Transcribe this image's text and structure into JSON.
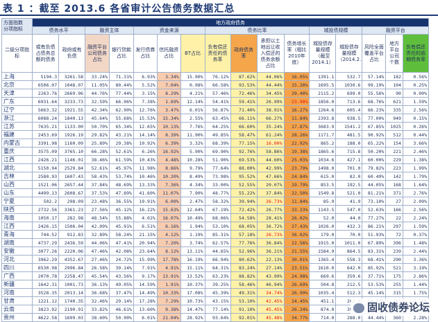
{
  "title": "表 1 ：截至 2013.6 各省审计公告债务数据汇总",
  "header": {
    "corner_top": "方面指数\n分项指标",
    "corner_bottom": "二级分项指标",
    "group_main": "地方政府债务",
    "groups": [
      "债务水平",
      "融资主体",
      "资金来源",
      "债务比率",
      "城投债规模",
      "融资平台"
    ],
    "columns": [
      "或有负债占债务总额的债务",
      "政府或有负债",
      "融资平台公司债务占比",
      "银行贷款占比",
      "发行债券占比",
      "信托融资占比",
      "BT占比",
      "负有偿还责任的债务率",
      "政府债务率",
      "承担以土地出让收入偿还的债务余额占比",
      "债务增长率（相比2010年底）",
      "城投债存量规模（截至2014.1）",
      "城投债存量规模（2014.2.1）",
      "风险全面覆盖平台占比",
      "地方平台公司个数",
      "负有偿还责任的逾期债务率"
    ]
  },
  "rows": [
    {
      "prov": "上海",
      "v": [
        "5194.3",
        "3261.58",
        "33.24%",
        "71.31%",
        "6.93%",
        "3.34%",
        "15.90%",
        "76.12%",
        "87.62%",
        "44.06%",
        "16.05%",
        "1391.1",
        "532.7",
        "57.14%",
        "182",
        "0.56%"
      ]
    },
    {
      "prov": "北京",
      "v": [
        "6506.07",
        "1048.07",
        "11.05%",
        "80.44%",
        "5.52%",
        "7.04%",
        "0.98%",
        "66.58%",
        "93.53%",
        "44.44%",
        "15.20%",
        "1695.5",
        "1030.6",
        "99.19%",
        "104",
        "0.25%"
      ]
    },
    {
      "prov": "天津",
      "v": [
        "2263.76",
        "2669.96",
        "44.76%",
        "77.44%",
        "3.15%",
        "8.29%",
        "4.21%",
        "57.46%",
        "72.46%",
        "34.45%",
        "29.40%",
        "2115.2",
        "699.0",
        "55.56%",
        "90",
        "0.00%"
      ]
    },
    {
      "prov": "广东",
      "v": [
        "6931.64",
        "3233.73",
        "32.59%",
        "66.96%",
        "7.38%",
        "1.69%",
        "12.14%",
        "54.41%",
        "59.41%",
        "26.99%",
        "23.98%",
        "1856.0",
        "713.6",
        "68.76%",
        "621",
        "1.59%"
      ]
    },
    {
      "prov": "辽宁",
      "v": [
        "5663.32",
        "1921.55",
        "42.34%",
        "62.90%",
        "12.76%",
        "3.47%",
        "6.01%",
        "56.87%",
        "71.40%",
        "38.91%",
        "16.27%",
        "1264.6",
        "605.4",
        "66.23%",
        "335",
        "2.56%"
      ]
    },
    {
      "prov": "浙江",
      "v": [
        "6088.24",
        "1840.13",
        "45.64%",
        "55.68%",
        "15.53%",
        "15.34%",
        "2.55%",
        "63.45%",
        "66.11%",
        "66.27%",
        "11.84%",
        "2393.8",
        "938.5",
        "77.00%",
        "949",
        "0.15%"
      ]
    },
    {
      "prov": "江苏",
      "v": [
        "7635.21",
        "1133.00",
        "50.70%",
        "65.34%",
        "12.65%",
        "10.13%",
        "7.76%",
        "64.25%",
        "66.60%",
        "35.24%",
        "17.87%",
        "3683.9",
        "1541.2",
        "67.85%",
        "1025",
        "0.26%"
      ]
    },
    {
      "prov": "福建",
      "v": [
        "2453.69",
        "1926.19",
        "29.82%",
        "43.21%",
        "14.14%",
        "8.39%",
        "11.90%",
        "49.85%",
        "58.47%",
        "61.24%",
        "28.26%",
        "1171.7",
        "481.5",
        "90.92%",
        "512",
        "0.44%"
      ]
    },
    {
      "prov": "内蒙古",
      "v": [
        "3391.98",
        "1160.09",
        "25.89%",
        "29.38%",
        "10.92%",
        "6.39%",
        "3.32%",
        "68.39%",
        "77.15%",
        "16.00%",
        "22.92%",
        "865.2",
        "188.0",
        "65.22%",
        "154",
        "3.66%"
      ]
    },
    {
      "prov": "重庆",
      "v": [
        "3575.09",
        "3765.10",
        "66.28%",
        "52.61%",
        "6.26%",
        "16.92%",
        "5.90%",
        "69.90%",
        "92.76%",
        "58.86%",
        "19.38%",
        "1865.6",
        "715.8",
        "50.20%",
        "221",
        "2.46%"
      ]
    },
    {
      "prov": "江西",
      "v": [
        "2426.21",
        "1146.01",
        "38.46%",
        "61.59%",
        "10.43%",
        "4.48%",
        "10.28%",
        "51.90%",
        "69.53%",
        "44.60%",
        "25.03%",
        "1034.6",
        "427.1",
        "60.00%",
        "229",
        "1.38%"
      ]
    },
    {
      "prov": "湖北",
      "v": [
        "5150.94",
        "2529.84",
        "52.61%",
        "45.97%",
        "11.98%",
        "8.66%",
        "9.79%",
        "77.64%",
        "88.00%",
        "42.99%",
        "23.79%",
        "1498.0",
        "701.0",
        "79.82%",
        "223",
        "1.99%"
      ]
    },
    {
      "prov": "吉林",
      "v": [
        "2580.93",
        "1607.43",
        "58.43%",
        "53.74%",
        "10.46%",
        "10.20%",
        "8.49%",
        "73.98%",
        "95.52%",
        "47.66%",
        "24.84%",
        "615.0",
        "82.0",
        "60.49%",
        "142",
        "1.79%"
      ]
    },
    {
      "prov": "山西",
      "v": [
        "1521.06",
        "2657.44",
        "37.84%",
        "48.69%",
        "13.33%",
        "7.36%",
        "4.34%",
        "33.00%",
        "52.55%",
        "20.07%",
        "19.79%",
        "853.5",
        "192.5",
        "44.05%",
        "168",
        "1.64%"
      ]
    },
    {
      "prov": "山东",
      "v": [
        "4499.13",
        "2608.67",
        "37.53%",
        "47.89%",
        "41.60%",
        "11.07%",
        "7.90%",
        "48.77%",
        "55.22%",
        "37.84%",
        "22.50%",
        "1549.8",
        "521.0",
        "81.21%",
        "371",
        "2.76%"
      ]
    },
    {
      "prov": "宁夏",
      "v": [
        "502.2",
        "298.09",
        "23.48%",
        "36.55%",
        "19.91%",
        "6.00%",
        "2.47%",
        "58.32%",
        "39.94%",
        "26.73%",
        "11.84%",
        "85.9",
        "41.9",
        "73.10%",
        "27",
        "2.09%"
      ]
    },
    {
      "prov": "陕西",
      "v": [
        "2732.56",
        "3361.23",
        "27.56%",
        "45.12%",
        "16.22%",
        "15.63%",
        "12.64%",
        "67.19%",
        "72.42%",
        "26.77%",
        "33.23%",
        "1143.5",
        "547.0",
        "52.63%",
        "166",
        "2.56%"
      ]
    },
    {
      "prov": "海南",
      "v": [
        "1050.17",
        "282.98",
        "48.54%",
        "55.88%",
        "4.02%",
        "16.07%",
        "10.49%",
        "68.06%",
        "54.58%",
        "28.41%",
        "26.02%",
        "52.0",
        "44.0",
        "77.27%",
        "22",
        "2.24%"
      ]
    },
    {
      "prov": "江西",
      "v": [
        "2426.15",
        "1506.04",
        "42.09%",
        "45.91%",
        "6.51%",
        "6.16%",
        "1.94%",
        "53.10%",
        "68.05%",
        "36.72%",
        "27.43%",
        "1026.0",
        "432.3",
        "86.21%",
        "297",
        "1.59%"
      ]
    },
    {
      "prov": "青海",
      "v": [
        "744.52",
        "912.83",
        "32.89%",
        "58.24%",
        "21.15%",
        "4.12%",
        "1.19%",
        "85.31%",
        "57.18%",
        "26.73%",
        "36.02%",
        "179.0",
        "70.0",
        "51.93%",
        "72",
        "0.37%"
      ]
    },
    {
      "prov": "湖南",
      "v": [
        "4737.29",
        "2436.59",
        "44.06%",
        "47.41%",
        "20.94%",
        "7.20%",
        "3.74%",
        "62.57%",
        "77.76%",
        "36.84%",
        "22.56%",
        "1915.0",
        "1011.0",
        "67.89%",
        "396",
        "1.48%"
      ]
    },
    {
      "prov": "安徽",
      "v": [
        "3077.26",
        "2220.06",
        "47.46%",
        "42.08%",
        "23.64%",
        "8.12%",
        "13.11%",
        "44.65%",
        "52.96%",
        "36.21%",
        "21.55%",
        "1584.9",
        "864.5",
        "83.31%",
        "239",
        "2.44%"
      ]
    },
    {
      "prov": "河北",
      "v": [
        "3962.29",
        "4352.67",
        "27.46%",
        "24.72%",
        "15.99%",
        "17.78%",
        "16.19%",
        "66.94%",
        "80.62%",
        "22.13%",
        "30.01%",
        "1365.4",
        "558.3",
        "68.41%",
        "290",
        "3.36%"
      ]
    },
    {
      "prov": "四川",
      "v": [
        "6530.98",
        "2996.84",
        "26.58%",
        "39.14%",
        "7.91%",
        "4.91%",
        "15.11%",
        "64.31%",
        "83.24%",
        "27.14%",
        "23.51%",
        "1610.0",
        "642.0",
        "85.92%",
        "521",
        "3.19%"
      ]
    },
    {
      "prov": "广西",
      "v": [
        "2070.78",
        "2258.47",
        "45.54%",
        "43.56%",
        "9.17%",
        "13.91%",
        "13.52%",
        "63.23%",
        "88.82%",
        "43.99%",
        "24.98%",
        "669.6",
        "359.6",
        "37.71%",
        "175",
        "2.86%"
      ]
    },
    {
      "prov": "新疆",
      "v": [
        "1642.31",
        "1001.73",
        "36.13%",
        "49.05%",
        "14.59%",
        "1.91%",
        "10.37%",
        "39.25%",
        "58.46%",
        "46.94%",
        "26.69%",
        "504.8",
        "212.5",
        "53.53%",
        "255",
        "1.44%"
      ]
    },
    {
      "prov": "河南",
      "v": [
        "3528.35",
        "2013.14",
        "36.68%",
        "37.47%",
        "14.49%",
        "10.33%",
        "17.08%",
        "45.39%",
        "49.31%",
        "34.74%",
        "26.99%",
        "1035.4",
        "512.3",
        "45.14%",
        "315",
        "1.75%"
      ]
    },
    {
      "prov": "甘肃",
      "v": [
        "1221.12",
        "1740.35",
        "32.46%",
        "29.14%",
        "17.28%",
        "7.29%",
        "10.73%",
        "43.15%",
        "53.10%",
        "42.45%",
        "24.45%",
        "451.1",
        "202.3",
        "50.17%",
        "151",
        "2.10%"
      ]
    },
    {
      "prov": "云南",
      "v": [
        "3823.92",
        "2190.91",
        "33.82%",
        "46.61%",
        "13.60%",
        "9.38%",
        "14.47%",
        "77.14%",
        "91.10%",
        "45.45%",
        "26.24%",
        "874.0",
        "398.0",
        "58.73%",
        "309",
        "2.26%"
      ]
    },
    {
      "prov": "贵州",
      "v": [
        "4622.58",
        "1699.03",
        "38.60%",
        "50.90%",
        "6.01%",
        "21.04%",
        "28.92%",
        "93.64%",
        "92.01%",
        "45.48%",
        "34.77%",
        "714.0",
        "288.0",
        "44.44%",
        "360",
        "2.28%"
      ]
    }
  ],
  "highlights": {
    "red_cells": [
      [
        3,
        10
      ],
      [
        8,
        9
      ],
      [
        15,
        9
      ],
      [
        19,
        9
      ],
      [
        26,
        9
      ],
      [
        27,
        9
      ],
      [
        28,
        9
      ],
      [
        29,
        9
      ]
    ]
  },
  "watermark": "固收债券论坛",
  "watermark_icon": "chat-bubble-icon",
  "colors": {
    "header_navy": "#16336e",
    "orange": "#f5a64a",
    "yellow": "#fff2a8",
    "green": "#5fbf3c",
    "pale": "#f3d7c6",
    "red": "#e01414"
  }
}
